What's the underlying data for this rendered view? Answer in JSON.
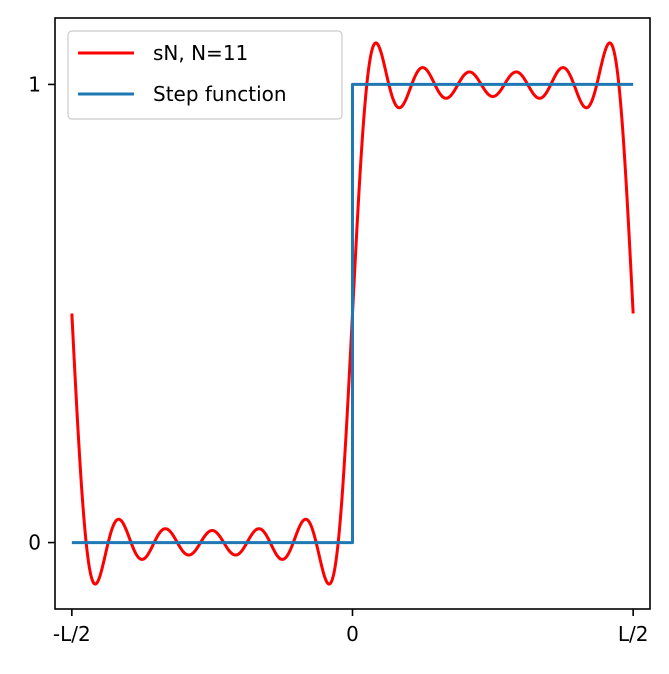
{
  "chart_data": {
    "type": "line",
    "title": "",
    "xlabel": "",
    "ylabel": "",
    "xlim": [
      -0.53,
      0.53
    ],
    "ylim": [
      -0.145,
      1.145
    ],
    "xticks": [
      {
        "value": -0.5,
        "label": "-L/2"
      },
      {
        "value": 0,
        "label": "0"
      },
      {
        "value": 0.5,
        "label": "L/2"
      }
    ],
    "yticks": [
      {
        "value": 0,
        "label": "0"
      },
      {
        "value": 1,
        "label": "1"
      }
    ],
    "grid": false,
    "legend": {
      "position": "top-left",
      "entries": [
        {
          "label": "sN, N=11",
          "color": "#ff0000"
        },
        {
          "label": "Step function",
          "color": "#1f77b4"
        }
      ]
    },
    "series": [
      {
        "name": "sN, N=11",
        "color": "#ff0000",
        "kind": "fourier_partial_sum_square_wave",
        "N": 11,
        "x_range": [
          -0.5,
          0.5
        ]
      },
      {
        "name": "Step function",
        "color": "#1f77b4",
        "x": [
          -0.5,
          0,
          0,
          0.5
        ],
        "y": [
          0,
          0,
          1,
          1
        ]
      }
    ]
  }
}
